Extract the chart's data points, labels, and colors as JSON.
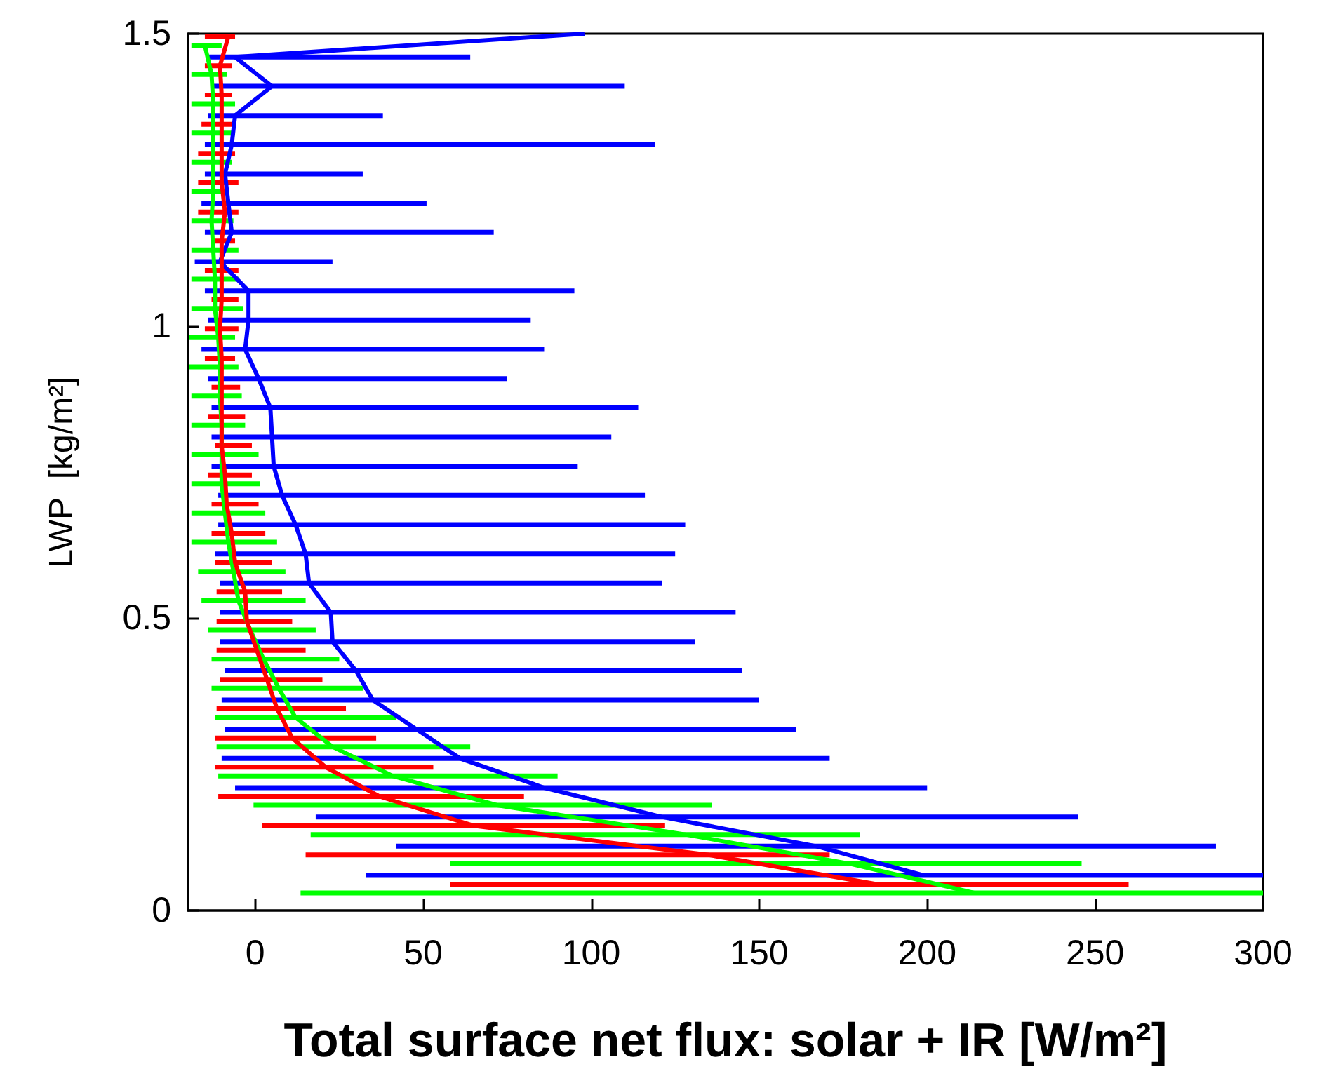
{
  "chart_data": {
    "type": "line",
    "orientation": "horizontal",
    "xlabel": "Total surface net flux: solar + IR [W/m²]",
    "ylabel": "LWP  [kg/m²]",
    "xlim": [
      -20,
      300
    ],
    "xticks": [
      0,
      50,
      100,
      150,
      200,
      250,
      300
    ],
    "ylim": [
      0,
      1.5
    ],
    "yticks": [
      0,
      0.5,
      1,
      1.5
    ],
    "marker": "none",
    "series": [
      {
        "color": "#0000ff",
        "values": [
          199,
          167,
          121,
          86,
          61,
          48,
          35,
          30,
          23,
          22.5,
          16,
          15,
          12,
          8,
          5.5,
          5,
          4.5,
          1,
          -3,
          -2,
          -2,
          -10.5,
          -7,
          -8,
          -9,
          -7,
          -6,
          5,
          -6,
          98
        ],
        "x": [
          0.06,
          0.11,
          0.16,
          0.21,
          0.26,
          0.31,
          0.36,
          0.41,
          0.46,
          0.51,
          0.56,
          0.61,
          0.66,
          0.71,
          0.76,
          0.81,
          0.86,
          0.91,
          0.96,
          1.01,
          1.06,
          1.11,
          1.16,
          1.21,
          1.26,
          1.31,
          1.36,
          1.41,
          1.46,
          1.5
        ],
        "errors": [
          [
            33,
            300
          ],
          [
            42,
            286
          ],
          [
            18,
            245
          ],
          [
            -6,
            200
          ],
          [
            -10,
            171
          ],
          [
            -9,
            161
          ],
          [
            -10,
            150
          ],
          [
            -9,
            145
          ],
          [
            -10.5,
            131
          ],
          [
            -10.5,
            143
          ],
          [
            -10.5,
            121
          ],
          [
            -12,
            125
          ],
          [
            -11,
            128
          ],
          [
            -11,
            116
          ],
          [
            -13,
            96
          ],
          [
            -13,
            106
          ],
          [
            -13,
            114
          ],
          [
            -14,
            75
          ],
          [
            -16,
            86
          ],
          [
            -14,
            82
          ],
          [
            -15,
            95
          ],
          [
            -18,
            23
          ],
          [
            -15,
            71
          ],
          [
            -16,
            51
          ],
          [
            -15,
            32
          ],
          [
            -15,
            119
          ],
          [
            -14,
            38
          ],
          [
            -13,
            110
          ],
          [
            -14,
            64
          ],
          null
        ]
      },
      {
        "color": "#00ff00",
        "values": [
          214,
          177,
          128,
          72,
          41,
          23,
          12,
          7,
          2.5,
          -1.5,
          -5,
          -6.5,
          -8,
          -9,
          -10,
          -10,
          -10,
          -10.5,
          -10.5,
          -11,
          -12,
          -12,
          -12.5,
          -13,
          -12.5,
          -12.5,
          -12.5,
          -12.5,
          -13,
          -15
        ],
        "x": [
          0.03,
          0.08,
          0.13,
          0.18,
          0.23,
          0.28,
          0.33,
          0.38,
          0.43,
          0.48,
          0.53,
          0.58,
          0.63,
          0.68,
          0.73,
          0.78,
          0.83,
          0.88,
          0.93,
          0.98,
          1.03,
          1.08,
          1.13,
          1.18,
          1.23,
          1.28,
          1.33,
          1.38,
          1.43,
          1.48
        ],
        "errors": [
          [
            13.5,
            300
          ],
          [
            58,
            246
          ],
          [
            16.5,
            180
          ],
          [
            -0.5,
            136
          ],
          [
            -11,
            90
          ],
          [
            -11.5,
            64
          ],
          [
            -12,
            42
          ],
          [
            -13,
            32
          ],
          [
            -13,
            25
          ],
          [
            -14,
            18
          ],
          [
            -16,
            15
          ],
          [
            -17,
            9
          ],
          [
            -19,
            6.5
          ],
          [
            -19,
            3
          ],
          [
            -19,
            1.5
          ],
          [
            -19,
            1
          ],
          [
            -19,
            -3
          ],
          [
            -19,
            -4
          ],
          [
            -19.6,
            -5
          ],
          [
            -19.6,
            -6
          ],
          [
            -19,
            -3.5
          ],
          [
            -19,
            -5
          ],
          [
            -19,
            -5
          ],
          [
            -19,
            -6.5
          ],
          [
            -19,
            -9
          ],
          [
            -19,
            -7
          ],
          [
            -19,
            -6
          ],
          [
            -19,
            -6
          ],
          [
            -19,
            -8.5
          ],
          [
            -19,
            -10
          ]
        ]
      },
      {
        "color": "#ff0000",
        "values": [
          185,
          135,
          65,
          37,
          21,
          11,
          6.5,
          3.5,
          0.5,
          -2.5,
          -3,
          -6,
          -7,
          -8.5,
          -9,
          -10,
          -10,
          -10,
          -10,
          -10.5,
          -10,
          -10,
          -10,
          -9,
          -10,
          -10,
          -10,
          -10,
          -10.5,
          -8
        ],
        "x": [
          0.045,
          0.095,
          0.145,
          0.195,
          0.245,
          0.295,
          0.345,
          0.395,
          0.445,
          0.495,
          0.545,
          0.595,
          0.645,
          0.695,
          0.745,
          0.795,
          0.845,
          0.895,
          0.945,
          0.995,
          1.045,
          1.095,
          1.145,
          1.195,
          1.245,
          1.295,
          1.345,
          1.395,
          1.445,
          1.495
        ],
        "errors": [
          [
            58,
            260
          ],
          [
            15,
            171
          ],
          [
            2,
            122
          ],
          [
            -11,
            80
          ],
          [
            -12,
            53
          ],
          [
            -12,
            36
          ],
          [
            -11.5,
            27
          ],
          [
            -10.5,
            20
          ],
          [
            -11.5,
            15
          ],
          [
            -11.5,
            11
          ],
          [
            -11.5,
            8
          ],
          [
            -12,
            5
          ],
          [
            -13,
            3
          ],
          [
            -13,
            1
          ],
          [
            -14,
            -1
          ],
          [
            -12,
            -1
          ],
          [
            -14,
            -3
          ],
          [
            -13,
            -4.5
          ],
          [
            -15,
            -6
          ],
          [
            -15,
            -5
          ],
          [
            -13,
            -5
          ],
          [
            -15,
            -5
          ],
          [
            -12.5,
            -6
          ],
          [
            -17,
            -5
          ],
          [
            -17,
            -5
          ],
          [
            -17,
            -6
          ],
          [
            -16,
            -7
          ],
          [
            -15,
            -7
          ],
          [
            -15,
            -7
          ],
          [
            -15,
            -6
          ]
        ]
      }
    ]
  }
}
